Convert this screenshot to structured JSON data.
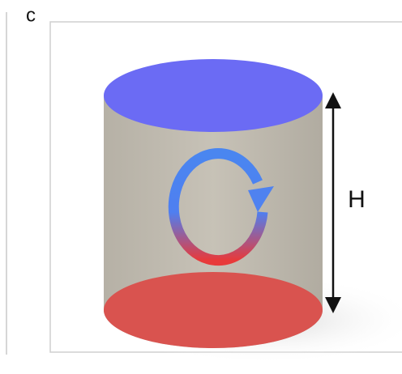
{
  "panel_label": "c",
  "height_label": "H"
}
